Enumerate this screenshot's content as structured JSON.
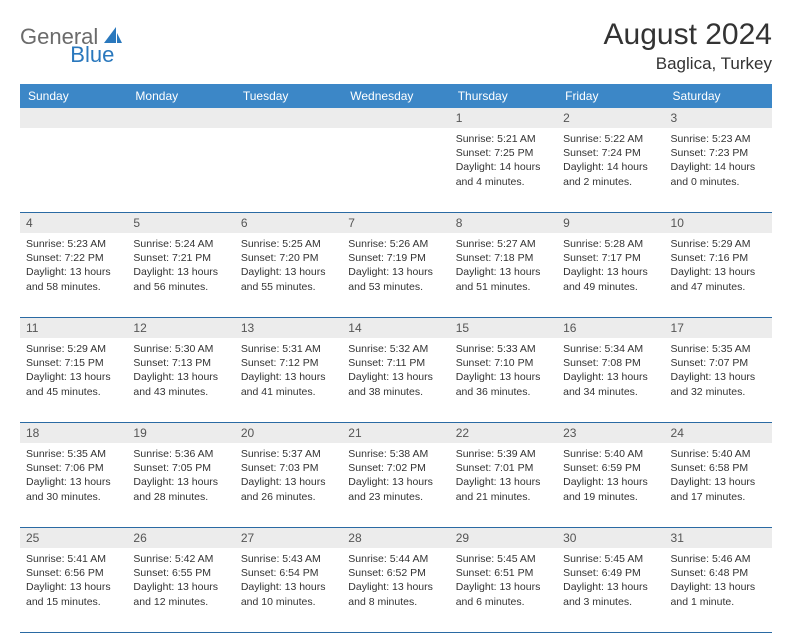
{
  "logo": {
    "part1": "General",
    "part2": "Blue"
  },
  "title": "August 2024",
  "location": "Baglica, Turkey",
  "colors": {
    "header_bg": "#3c87c7",
    "header_text": "#ffffff",
    "daynum_bg": "#ececec",
    "daynum_text": "#555555",
    "border": "#2a6aa3",
    "body_text": "#333333",
    "logo_gray": "#6b6b6b",
    "logo_blue": "#2a78bd"
  },
  "day_headers": [
    "Sunday",
    "Monday",
    "Tuesday",
    "Wednesday",
    "Thursday",
    "Friday",
    "Saturday"
  ],
  "weeks": [
    [
      {
        "n": "",
        "sunrise": "",
        "sunset": "",
        "daylight": ""
      },
      {
        "n": "",
        "sunrise": "",
        "sunset": "",
        "daylight": ""
      },
      {
        "n": "",
        "sunrise": "",
        "sunset": "",
        "daylight": ""
      },
      {
        "n": "",
        "sunrise": "",
        "sunset": "",
        "daylight": ""
      },
      {
        "n": "1",
        "sunrise": "Sunrise: 5:21 AM",
        "sunset": "Sunset: 7:25 PM",
        "daylight": "Daylight: 14 hours and 4 minutes."
      },
      {
        "n": "2",
        "sunrise": "Sunrise: 5:22 AM",
        "sunset": "Sunset: 7:24 PM",
        "daylight": "Daylight: 14 hours and 2 minutes."
      },
      {
        "n": "3",
        "sunrise": "Sunrise: 5:23 AM",
        "sunset": "Sunset: 7:23 PM",
        "daylight": "Daylight: 14 hours and 0 minutes."
      }
    ],
    [
      {
        "n": "4",
        "sunrise": "Sunrise: 5:23 AM",
        "sunset": "Sunset: 7:22 PM",
        "daylight": "Daylight: 13 hours and 58 minutes."
      },
      {
        "n": "5",
        "sunrise": "Sunrise: 5:24 AM",
        "sunset": "Sunset: 7:21 PM",
        "daylight": "Daylight: 13 hours and 56 minutes."
      },
      {
        "n": "6",
        "sunrise": "Sunrise: 5:25 AM",
        "sunset": "Sunset: 7:20 PM",
        "daylight": "Daylight: 13 hours and 55 minutes."
      },
      {
        "n": "7",
        "sunrise": "Sunrise: 5:26 AM",
        "sunset": "Sunset: 7:19 PM",
        "daylight": "Daylight: 13 hours and 53 minutes."
      },
      {
        "n": "8",
        "sunrise": "Sunrise: 5:27 AM",
        "sunset": "Sunset: 7:18 PM",
        "daylight": "Daylight: 13 hours and 51 minutes."
      },
      {
        "n": "9",
        "sunrise": "Sunrise: 5:28 AM",
        "sunset": "Sunset: 7:17 PM",
        "daylight": "Daylight: 13 hours and 49 minutes."
      },
      {
        "n": "10",
        "sunrise": "Sunrise: 5:29 AM",
        "sunset": "Sunset: 7:16 PM",
        "daylight": "Daylight: 13 hours and 47 minutes."
      }
    ],
    [
      {
        "n": "11",
        "sunrise": "Sunrise: 5:29 AM",
        "sunset": "Sunset: 7:15 PM",
        "daylight": "Daylight: 13 hours and 45 minutes."
      },
      {
        "n": "12",
        "sunrise": "Sunrise: 5:30 AM",
        "sunset": "Sunset: 7:13 PM",
        "daylight": "Daylight: 13 hours and 43 minutes."
      },
      {
        "n": "13",
        "sunrise": "Sunrise: 5:31 AM",
        "sunset": "Sunset: 7:12 PM",
        "daylight": "Daylight: 13 hours and 41 minutes."
      },
      {
        "n": "14",
        "sunrise": "Sunrise: 5:32 AM",
        "sunset": "Sunset: 7:11 PM",
        "daylight": "Daylight: 13 hours and 38 minutes."
      },
      {
        "n": "15",
        "sunrise": "Sunrise: 5:33 AM",
        "sunset": "Sunset: 7:10 PM",
        "daylight": "Daylight: 13 hours and 36 minutes."
      },
      {
        "n": "16",
        "sunrise": "Sunrise: 5:34 AM",
        "sunset": "Sunset: 7:08 PM",
        "daylight": "Daylight: 13 hours and 34 minutes."
      },
      {
        "n": "17",
        "sunrise": "Sunrise: 5:35 AM",
        "sunset": "Sunset: 7:07 PM",
        "daylight": "Daylight: 13 hours and 32 minutes."
      }
    ],
    [
      {
        "n": "18",
        "sunrise": "Sunrise: 5:35 AM",
        "sunset": "Sunset: 7:06 PM",
        "daylight": "Daylight: 13 hours and 30 minutes."
      },
      {
        "n": "19",
        "sunrise": "Sunrise: 5:36 AM",
        "sunset": "Sunset: 7:05 PM",
        "daylight": "Daylight: 13 hours and 28 minutes."
      },
      {
        "n": "20",
        "sunrise": "Sunrise: 5:37 AM",
        "sunset": "Sunset: 7:03 PM",
        "daylight": "Daylight: 13 hours and 26 minutes."
      },
      {
        "n": "21",
        "sunrise": "Sunrise: 5:38 AM",
        "sunset": "Sunset: 7:02 PM",
        "daylight": "Daylight: 13 hours and 23 minutes."
      },
      {
        "n": "22",
        "sunrise": "Sunrise: 5:39 AM",
        "sunset": "Sunset: 7:01 PM",
        "daylight": "Daylight: 13 hours and 21 minutes."
      },
      {
        "n": "23",
        "sunrise": "Sunrise: 5:40 AM",
        "sunset": "Sunset: 6:59 PM",
        "daylight": "Daylight: 13 hours and 19 minutes."
      },
      {
        "n": "24",
        "sunrise": "Sunrise: 5:40 AM",
        "sunset": "Sunset: 6:58 PM",
        "daylight": "Daylight: 13 hours and 17 minutes."
      }
    ],
    [
      {
        "n": "25",
        "sunrise": "Sunrise: 5:41 AM",
        "sunset": "Sunset: 6:56 PM",
        "daylight": "Daylight: 13 hours and 15 minutes."
      },
      {
        "n": "26",
        "sunrise": "Sunrise: 5:42 AM",
        "sunset": "Sunset: 6:55 PM",
        "daylight": "Daylight: 13 hours and 12 minutes."
      },
      {
        "n": "27",
        "sunrise": "Sunrise: 5:43 AM",
        "sunset": "Sunset: 6:54 PM",
        "daylight": "Daylight: 13 hours and 10 minutes."
      },
      {
        "n": "28",
        "sunrise": "Sunrise: 5:44 AM",
        "sunset": "Sunset: 6:52 PM",
        "daylight": "Daylight: 13 hours and 8 minutes."
      },
      {
        "n": "29",
        "sunrise": "Sunrise: 5:45 AM",
        "sunset": "Sunset: 6:51 PM",
        "daylight": "Daylight: 13 hours and 6 minutes."
      },
      {
        "n": "30",
        "sunrise": "Sunrise: 5:45 AM",
        "sunset": "Sunset: 6:49 PM",
        "daylight": "Daylight: 13 hours and 3 minutes."
      },
      {
        "n": "31",
        "sunrise": "Sunrise: 5:46 AM",
        "sunset": "Sunset: 6:48 PM",
        "daylight": "Daylight: 13 hours and 1 minute."
      }
    ]
  ]
}
